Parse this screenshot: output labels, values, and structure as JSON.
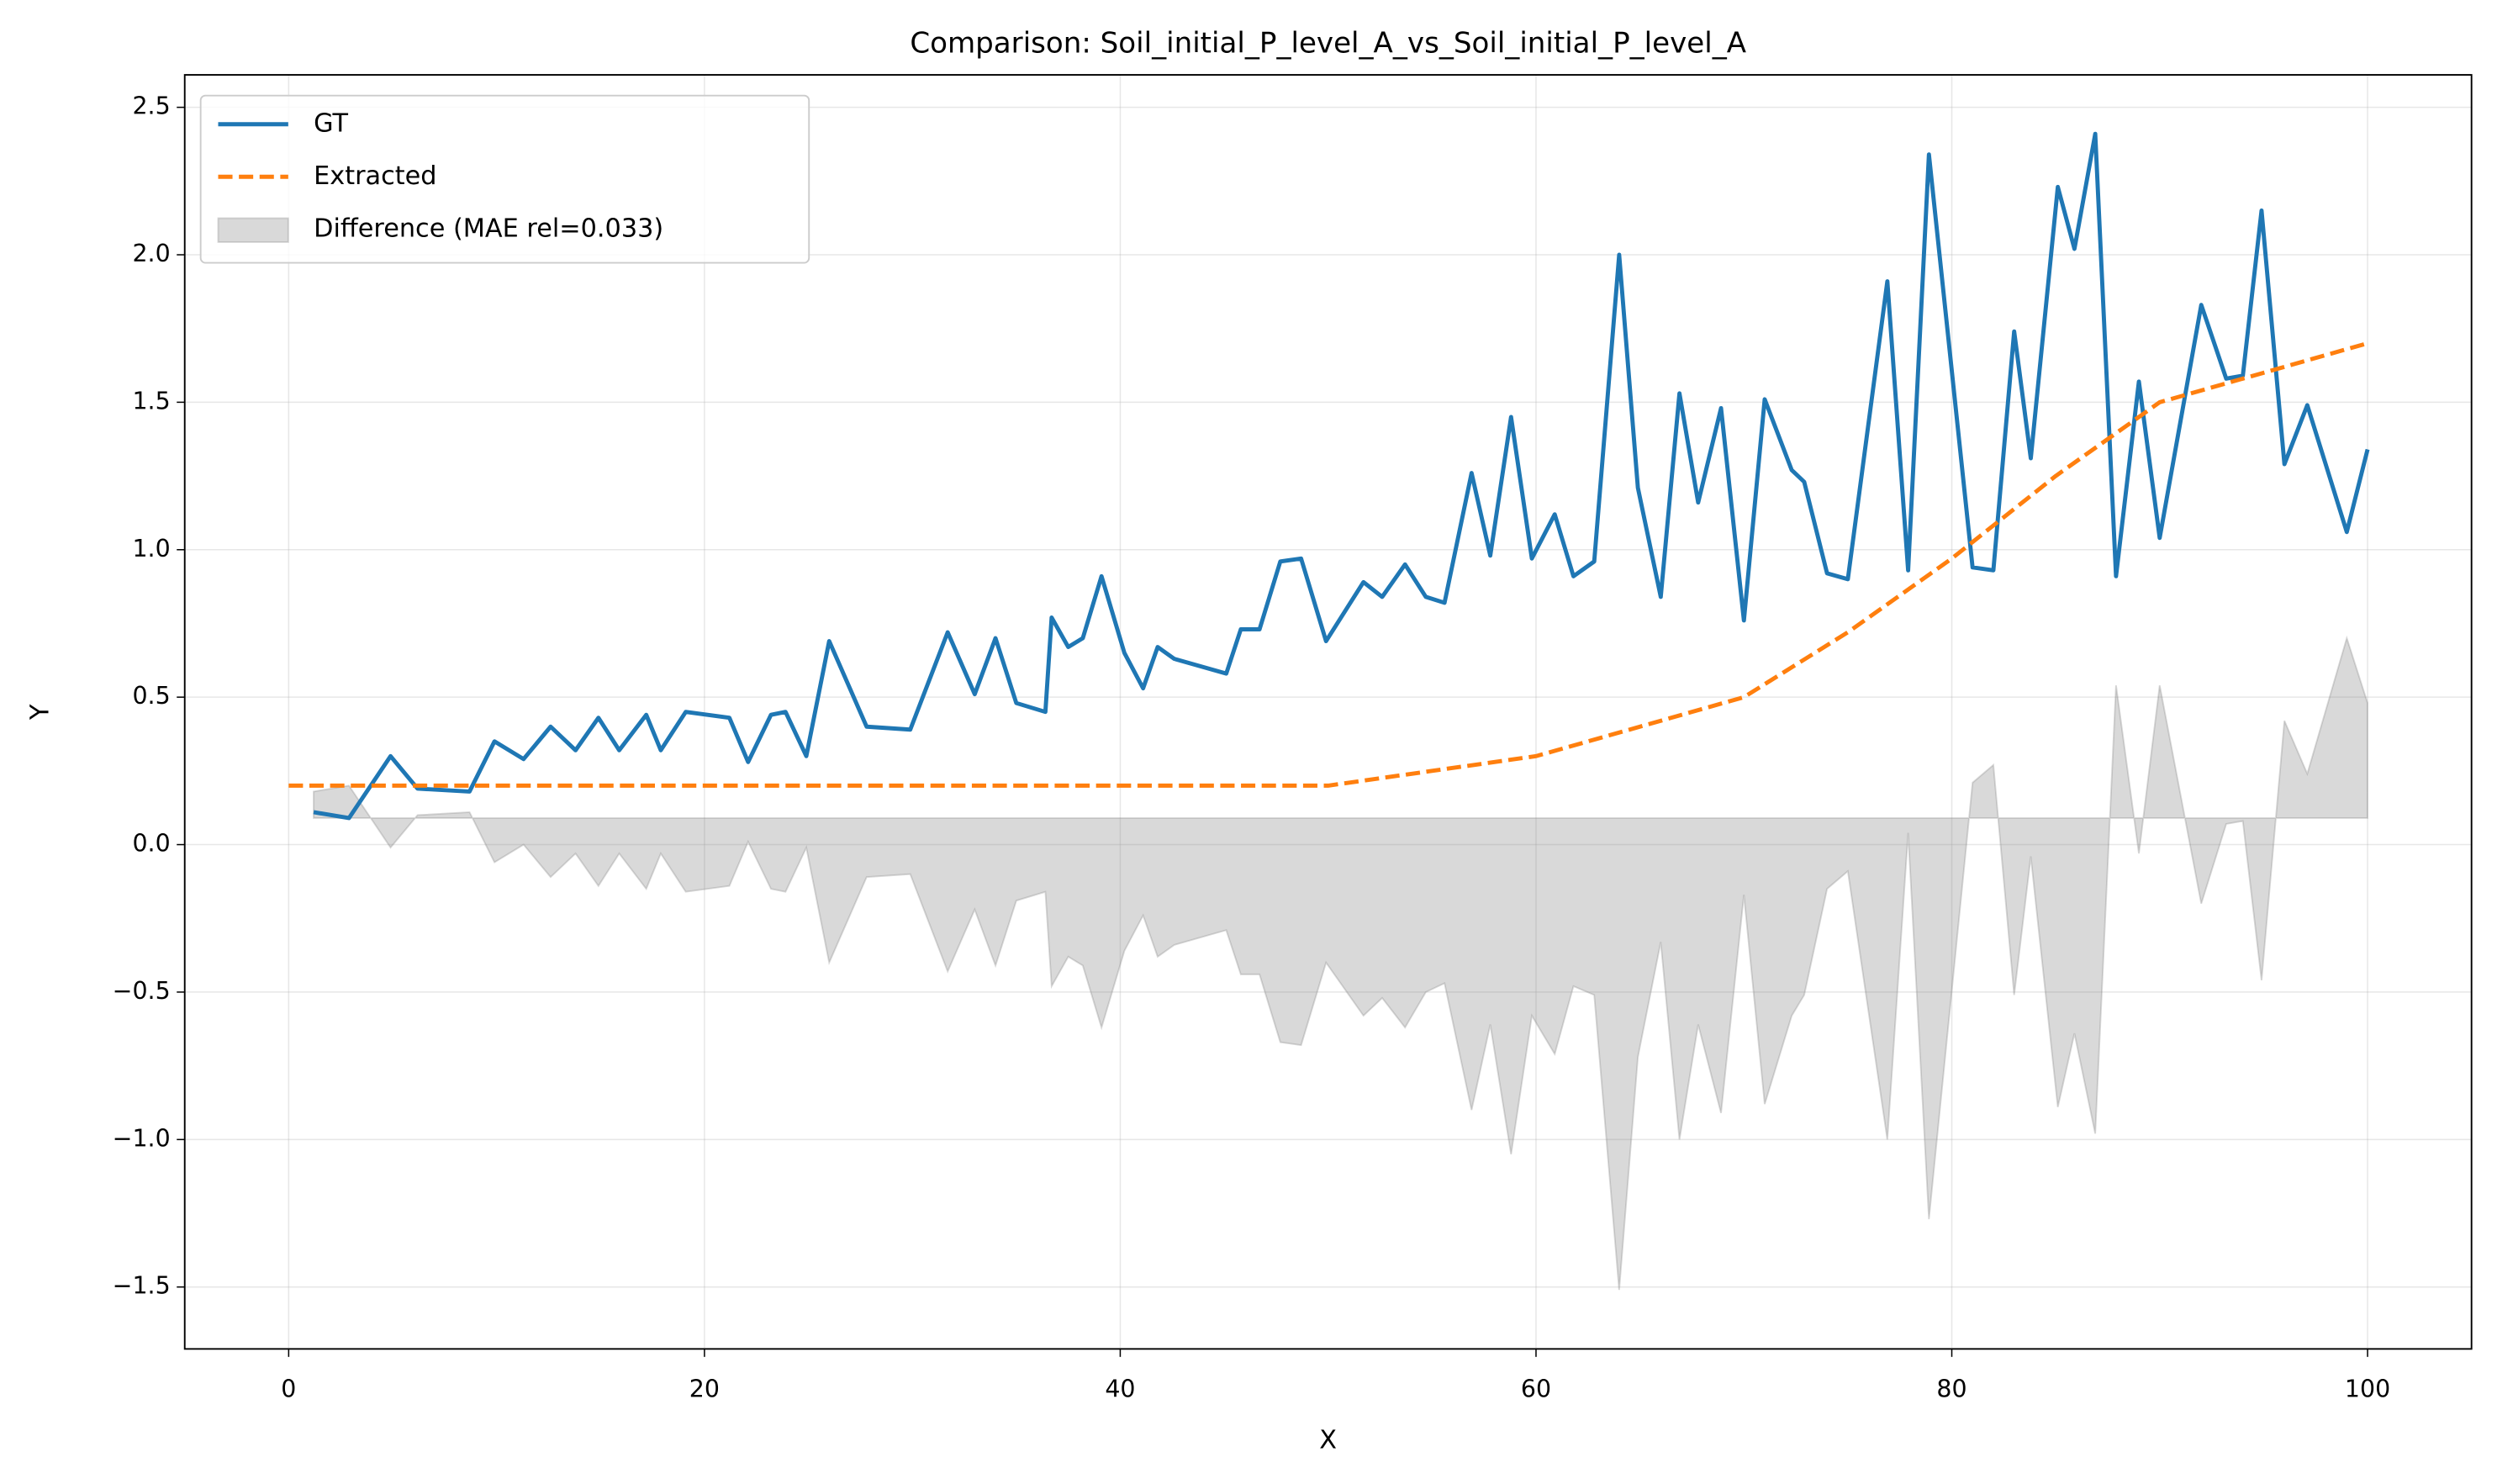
{
  "chart_data": {
    "type": "line",
    "title": "Comparison: Soil_initial_P_level_A_vs_Soil_initial_P_level_A",
    "x_label": "X",
    "y_label": "Y",
    "xlim": [
      -5,
      105
    ],
    "ylim": [
      -1.71,
      2.61
    ],
    "xticks": [
      0,
      20,
      40,
      60,
      80,
      100
    ],
    "yticks": [
      {
        "value": -1.5,
        "label": "−1.5"
      },
      {
        "value": -1.0,
        "label": "−1.0"
      },
      {
        "value": -0.5,
        "label": "−0.5"
      },
      {
        "value": 0,
        "label": "0.0"
      },
      0.5,
      {
        "value": 1.0,
        "label": "1.0"
      },
      1.5,
      {
        "value": 2.0,
        "label": "2.0"
      },
      2.5
    ],
    "grid": true,
    "legend": "upper left",
    "series": [
      {
        "name": "GT",
        "color": "#1f77b4",
        "kind": "line",
        "linestyle": "solid",
        "x": [
          1.2,
          2.9,
          4.9,
          6.2,
          8.7,
          9.9,
          11.3,
          12.6,
          13.8,
          14.9,
          15.9,
          17.2,
          17.9,
          19.1,
          21.2,
          22.1,
          23.2,
          23.9,
          24.9,
          26.0,
          27.8,
          29.9,
          31.7,
          33.0,
          34.0,
          35.0,
          36.4,
          36.7,
          37.5,
          38.2,
          39.1,
          40.2,
          41.1,
          41.8,
          42.6,
          45.1,
          45.8,
          46.7,
          47.7,
          48.7,
          49.9,
          51.7,
          52.6,
          53.7,
          54.7,
          55.6,
          56.9,
          57.8,
          58.8,
          59.8,
          60.9,
          61.8,
          62.8,
          64.0,
          64.9,
          66.0,
          66.9,
          67.8,
          68.9,
          70.0,
          71.0,
          72.3,
          72.9,
          74.0,
          75.0,
          76.9,
          77.9,
          78.9,
          81.0,
          82.0,
          83.0,
          83.8,
          85.1,
          85.9,
          86.9,
          87.9,
          89.0,
          90.0,
          92.0,
          93.2,
          94.0,
          94.9,
          96.0,
          97.1,
          99.0,
          100.0
        ],
        "values": [
          0.11,
          0.09,
          0.3,
          0.19,
          0.18,
          0.35,
          0.29,
          0.4,
          0.32,
          0.43,
          0.32,
          0.44,
          0.32,
          0.45,
          0.43,
          0.28,
          0.44,
          0.45,
          0.3,
          0.69,
          0.4,
          0.39,
          0.72,
          0.51,
          0.7,
          0.48,
          0.45,
          0.77,
          0.67,
          0.7,
          0.91,
          0.65,
          0.53,
          0.67,
          0.63,
          0.58,
          0.73,
          0.73,
          0.96,
          0.97,
          0.69,
          0.89,
          0.84,
          0.95,
          0.84,
          0.82,
          1.26,
          0.98,
          1.45,
          0.97,
          1.12,
          0.91,
          0.96,
          2.0,
          1.21,
          0.84,
          1.53,
          1.16,
          1.48,
          0.76,
          1.51,
          1.27,
          1.23,
          0.92,
          0.9,
          1.91,
          0.93,
          2.34,
          0.94,
          0.93,
          1.74,
          1.31,
          2.23,
          2.02,
          2.41,
          0.91,
          1.57,
          1.04,
          1.83,
          1.58,
          1.59,
          2.15,
          1.29,
          1.49,
          1.06,
          1.34
        ]
      },
      {
        "name": "Extracted",
        "color": "#ff7f0e",
        "kind": "line",
        "linestyle": "dashed",
        "x": [
          0,
          50,
          55,
          60,
          65,
          70,
          75,
          80,
          85,
          90,
          95,
          100
        ],
        "values": [
          0.2,
          0.2,
          0.25,
          0.3,
          0.4,
          0.5,
          0.72,
          0.97,
          1.25,
          1.5,
          1.6,
          1.7
        ]
      },
      {
        "name": "Difference (MAE rel=0.033)",
        "color": "#808080",
        "kind": "area",
        "baseline": 0.09,
        "x": [
          1.2,
          2.9,
          4.9,
          6.2,
          8.7,
          9.9,
          11.3,
          12.6,
          13.8,
          14.9,
          15.9,
          17.2,
          17.9,
          19.1,
          21.2,
          22.1,
          23.2,
          23.9,
          24.9,
          26.0,
          27.8,
          29.9,
          31.7,
          33.0,
          34.0,
          35.0,
          36.4,
          36.7,
          37.5,
          38.2,
          39.1,
          40.2,
          41.1,
          41.8,
          42.6,
          45.1,
          45.8,
          46.7,
          47.7,
          48.7,
          49.9,
          51.7,
          52.6,
          53.7,
          54.7,
          55.6,
          56.9,
          57.8,
          58.8,
          59.8,
          60.9,
          61.8,
          62.8,
          64.0,
          64.9,
          66.0,
          66.9,
          67.8,
          68.9,
          70.0,
          71.0,
          72.3,
          72.9,
          74.0,
          75.0,
          76.9,
          77.9,
          78.9,
          81.0,
          82.0,
          83.0,
          83.8,
          85.1,
          85.9,
          86.9,
          87.9,
          89.0,
          90.0,
          92.0,
          93.2,
          94.0,
          94.9,
          96.0,
          97.1,
          99.0,
          100.0
        ],
        "values": [
          0.18,
          0.2,
          -0.01,
          0.1,
          0.11,
          -0.06,
          0.0,
          -0.11,
          -0.03,
          -0.14,
          -0.03,
          -0.15,
          -0.03,
          -0.16,
          -0.14,
          0.01,
          -0.15,
          -0.16,
          -0.01,
          -0.4,
          -0.11,
          -0.1,
          -0.43,
          -0.22,
          -0.41,
          -0.19,
          -0.16,
          -0.48,
          -0.38,
          -0.41,
          -0.62,
          -0.36,
          -0.24,
          -0.38,
          -0.34,
          -0.29,
          -0.44,
          -0.44,
          -0.67,
          -0.68,
          -0.4,
          -0.58,
          -0.52,
          -0.62,
          -0.5,
          -0.47,
          -0.9,
          -0.61,
          -1.05,
          -0.58,
          -0.71,
          -0.48,
          -0.51,
          -1.51,
          -0.72,
          -0.33,
          -1.0,
          -0.61,
          -0.91,
          -0.17,
          -0.88,
          -0.58,
          -0.51,
          -0.15,
          -0.09,
          -1.0,
          0.04,
          -1.27,
          0.21,
          0.27,
          -0.51,
          -0.04,
          -0.89,
          -0.64,
          -0.98,
          0.54,
          -0.03,
          0.54,
          -0.2,
          0.07,
          0.08,
          -0.46,
          0.42,
          0.24,
          0.7,
          0.48
        ]
      }
    ]
  }
}
